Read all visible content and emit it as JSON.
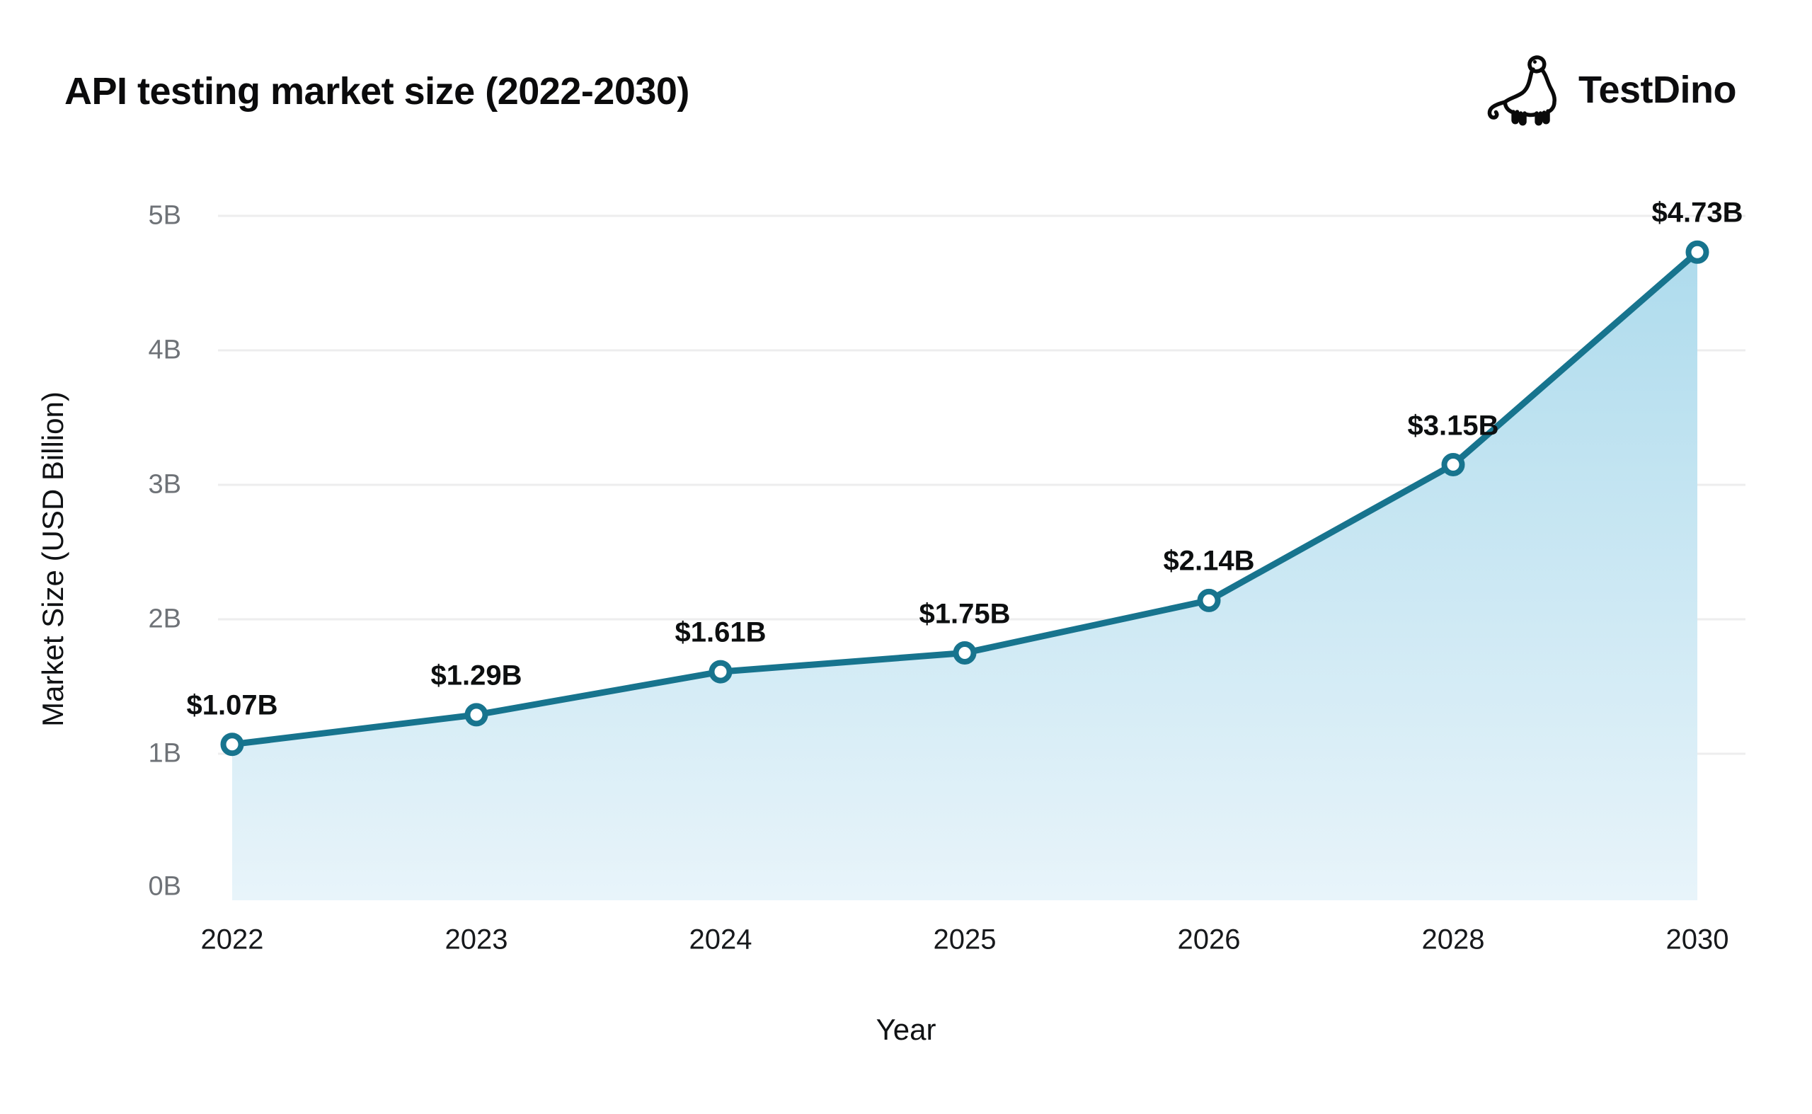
{
  "page": {
    "title": "API testing market size (2022-2030)",
    "brand": {
      "name": "TestDino",
      "icon": "dino-icon"
    }
  },
  "chart_data": {
    "type": "area",
    "title": "API testing market size (2022-2030)",
    "categories": [
      "2022",
      "2023",
      "2024",
      "2025",
      "2026",
      "2028",
      "2030"
    ],
    "values": [
      1.07,
      1.29,
      1.61,
      1.75,
      2.14,
      3.15,
      4.73
    ],
    "point_labels": [
      "$1.07B",
      "$1.29B",
      "$1.61B",
      "$1.75B",
      "$2.14B",
      "$3.15B",
      "$4.73B"
    ],
    "xlabel": "Year",
    "ylabel": "Market Size (USD Billion)",
    "ylim": [
      0,
      5
    ],
    "yticks": [
      {
        "value": 0,
        "label": "0B"
      },
      {
        "value": 1,
        "label": "1B"
      },
      {
        "value": 2,
        "label": "2B"
      },
      {
        "value": 3,
        "label": "3B"
      },
      {
        "value": 4,
        "label": "4B"
      },
      {
        "value": 5,
        "label": "5B"
      }
    ],
    "grid": "horizontal-only",
    "legend": "none",
    "marker_style": "open-circle",
    "colors": {
      "line": "#17748e",
      "marker_fill": "#ffffff",
      "area_top": "#abdaec",
      "area_bottom": "#e8f4fa",
      "grid": "#ededee",
      "ytick_text": "#6e7277",
      "xtick_text": "#17191c",
      "point_label_text": "#0d0f10",
      "title_text": "#0b0b0c",
      "background": "#ffffff"
    }
  }
}
